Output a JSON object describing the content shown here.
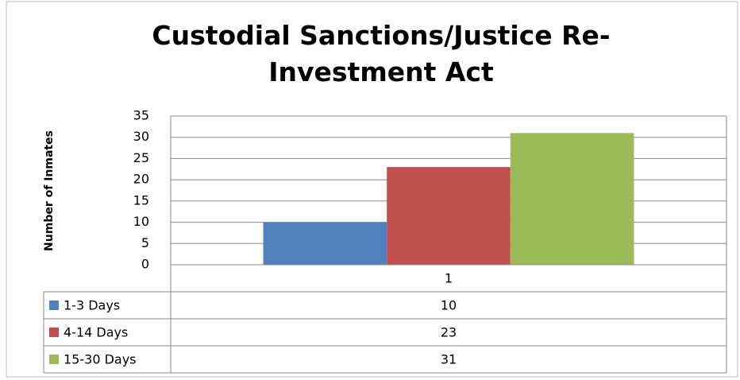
{
  "chart_data": {
    "type": "bar",
    "title": "Custodial Sanctions/Justice Re-Investment Act",
    "y_label": "Number of Inmates",
    "categories": [
      "1"
    ],
    "series": [
      {
        "name": "1-3 Days",
        "color": "#4f81bd",
        "values": [
          10
        ]
      },
      {
        "name": "4-14 Days",
        "color": "#c0504d",
        "values": [
          23
        ]
      },
      {
        "name": "15-30 Days",
        "color": "#9bbb59",
        "values": [
          31
        ]
      }
    ],
    "ylim": [
      0,
      35
    ],
    "yticks": [
      0,
      5,
      10,
      15,
      20,
      25,
      30,
      35
    ],
    "grid": true,
    "data_table": true
  }
}
